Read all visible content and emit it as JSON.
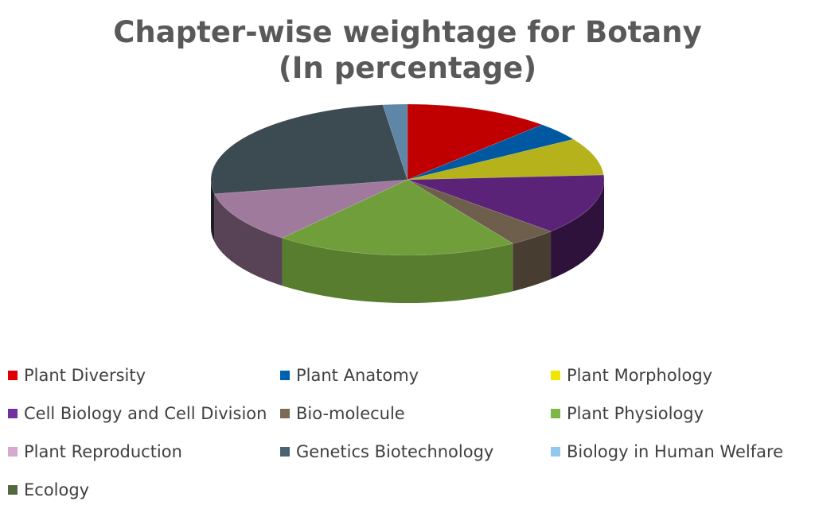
{
  "chart_data": {
    "type": "pie",
    "title_line1": "Chapter-wise weightage for Botany",
    "title_line2": "(In percentage)",
    "style": "3d",
    "legend_position": "bottom",
    "slices": [
      {
        "label": "Plant Diversity",
        "value": 12,
        "color": "#C00000"
      },
      {
        "label": "Plant Anatomy",
        "value": 4,
        "color": "#0058A0"
      },
      {
        "label": "Plant Morphology",
        "value": 8,
        "color": "#B5B21C"
      },
      {
        "label": "Cell Biology and Cell Division",
        "value": 13,
        "color": "#5B2378"
      },
      {
        "label": "Bio-molecule",
        "value": 4,
        "color": "#6E5E4C"
      },
      {
        "label": "Plant Physiology",
        "value": 20,
        "color": "#6F9E3A"
      },
      {
        "label": "Plant Reproduction",
        "value": 11,
        "color": "#A07A9C"
      },
      {
        "label": "Genetics Biotechnology",
        "value": 26,
        "color": "#3C4A52"
      },
      {
        "label": "Biology in Human Welfare",
        "value": 2,
        "color": "#5E86A6"
      },
      {
        "label": "Ecology",
        "value": 0,
        "color": "#4D5E3A"
      }
    ],
    "legend_colors": [
      "#E00000",
      "#0060B0",
      "#F2E600",
      "#7030A0",
      "#7A6A55",
      "#7DB842",
      "#D6A8D2",
      "#4A6373",
      "#92C8EE",
      "#55683F"
    ]
  }
}
